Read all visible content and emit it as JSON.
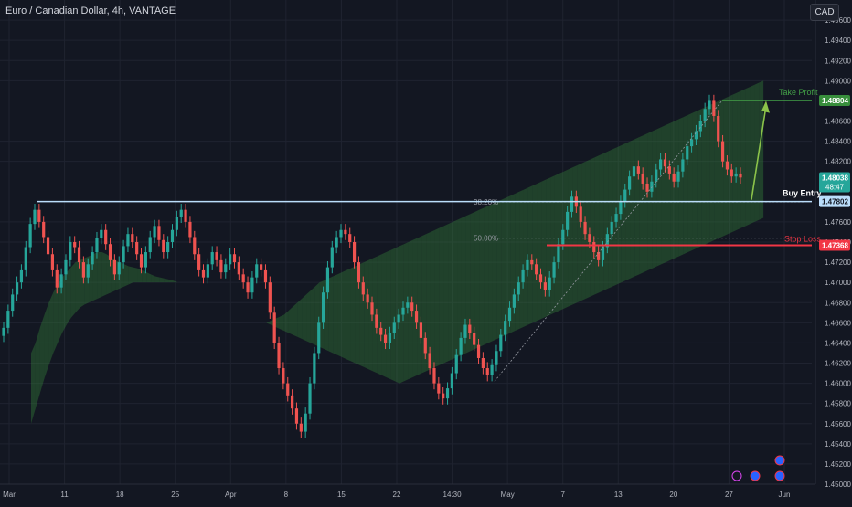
{
  "header": {
    "title": "Euro / Canadian Dollar, 4h, VANTAGE",
    "currency": "CAD"
  },
  "chart_data": {
    "type": "candlestick",
    "symbol": "EURCAD",
    "timeframe": "4h",
    "y_axis": {
      "range": [
        1.45,
        1.498
      ],
      "ticks": [
        "1.49600",
        "1.49400",
        "1.49200",
        "1.49000",
        "1.48600",
        "1.48400",
        "1.48200",
        "1.47600",
        "1.47400",
        "1.47200",
        "1.47000",
        "1.46800",
        "1.46600",
        "1.46400",
        "1.46200",
        "1.46000",
        "1.45800",
        "1.45600",
        "1.45400",
        "1.45200",
        "1.45000"
      ]
    },
    "x_axis": {
      "ticks": [
        "Mar",
        "11",
        "18",
        "25",
        "Apr",
        "8",
        "15",
        "22",
        "14:30",
        "May",
        "7",
        "13",
        "20",
        "27",
        "Jun"
      ]
    },
    "price_tags": [
      {
        "label": "1.48804",
        "price": 1.48804,
        "color": "#388e3c"
      },
      {
        "label": "1.48038",
        "sub": "48:47",
        "price": 1.48038,
        "color": "#26a69a"
      },
      {
        "label": "1.47802",
        "price": 1.47802,
        "color": "#bbdefb"
      },
      {
        "label": "1.47368",
        "price": 1.47368,
        "color": "#f23645"
      }
    ],
    "levels": {
      "buy_entry": {
        "label": "Buy Entry",
        "price": 1.47802
      },
      "take_profit": {
        "label": "Take Profit",
        "price": 1.48804
      },
      "stop_loss": {
        "label": "Stop Loss",
        "price": 1.47368
      }
    },
    "fibonacci": [
      {
        "label": "38.20%",
        "price": 1.478
      },
      {
        "label": "50.00%",
        "price": 1.4744
      }
    ],
    "candles_close": [
      1.4655,
      1.4672,
      1.4688,
      1.47,
      1.4712,
      1.4735,
      1.4758,
      1.4772,
      1.476,
      1.4745,
      1.4728,
      1.4712,
      1.4695,
      1.4708,
      1.4722,
      1.474,
      1.4735,
      1.472,
      1.4705,
      1.4718,
      1.473,
      1.4744,
      1.4752,
      1.4738,
      1.4722,
      1.4708,
      1.472,
      1.4736,
      1.4748,
      1.474,
      1.4728,
      1.4715,
      1.473,
      1.4745,
      1.4756,
      1.4742,
      1.473,
      1.474,
      1.4752,
      1.4765,
      1.4772,
      1.476,
      1.4745,
      1.4728,
      1.4712,
      1.4705,
      1.4718,
      1.473,
      1.4722,
      1.471,
      1.4718,
      1.4728,
      1.472,
      1.4708,
      1.47,
      1.469,
      1.4705,
      1.4718,
      1.4712,
      1.47,
      1.467,
      1.464,
      1.4615,
      1.46,
      1.4588,
      1.4575,
      1.456,
      1.4552,
      1.457,
      1.46,
      1.463,
      1.466,
      1.469,
      1.4715,
      1.4735,
      1.4745,
      1.4752,
      1.4748,
      1.474,
      1.472,
      1.47,
      1.4688,
      1.468,
      1.4668,
      1.4655,
      1.4648,
      1.464,
      1.465,
      1.466,
      1.4668,
      1.4675,
      1.468,
      1.4672,
      1.466,
      1.4645,
      1.463,
      1.4615,
      1.46,
      1.459,
      1.4585,
      1.4595,
      1.461,
      1.4628,
      1.4645,
      1.4658,
      1.465,
      1.4638,
      1.4625,
      1.4615,
      1.4608,
      1.4618,
      1.4632,
      1.4648,
      1.4662,
      1.4675,
      1.4688,
      1.47,
      1.4712,
      1.4722,
      1.4718,
      1.4708,
      1.47,
      1.4692,
      1.4705,
      1.472,
      1.4738,
      1.4752,
      1.477,
      1.4785,
      1.4775,
      1.476,
      1.4748,
      1.474,
      1.473,
      1.4722,
      1.4735,
      1.4748,
      1.476,
      1.4768,
      1.478,
      1.4792,
      1.4805,
      1.4815,
      1.4808,
      1.4798,
      1.479,
      1.48,
      1.4812,
      1.4822,
      1.4815,
      1.4808,
      1.48,
      1.481,
      1.4822,
      1.4835,
      1.4842,
      1.485,
      1.486,
      1.4872,
      1.488,
      1.4865,
      1.484,
      1.482,
      1.4812,
      1.4805,
      1.4808,
      1.4804
    ],
    "cloud_upper": [
      1.463,
      1.464,
      1.4655,
      1.4668,
      1.468,
      1.469,
      1.4698,
      1.4705,
      1.471,
      1.4715,
      1.472,
      1.4722,
      1.4724,
      1.4726,
      1.4728,
      1.473,
      1.473,
      1.4728,
      1.4725,
      1.4722,
      1.472,
      1.4718,
      1.4716,
      1.4715,
      1.4714,
      1.4712,
      1.471,
      1.4708,
      1.4706,
      1.4705,
      1.4704,
      1.4703,
      1.4702,
      1.47,
      1.4698,
      1.4696,
      1.4694,
      1.4692,
      1.469,
      1.4688,
      1.4686,
      1.4684,
      1.4682,
      1.468,
      1.4678,
      1.4676,
      1.4674,
      1.4672,
      1.467,
      1.4668,
      1.4666,
      1.4664,
      1.4662,
      1.466,
      1.4662,
      1.4664,
      1.4666,
      1.4668,
      1.4672,
      1.4676,
      1.468,
      1.4684,
      1.4688,
      1.4692,
      1.4696,
      1.47,
      1.4702,
      1.4704,
      1.4706,
      1.4708,
      1.471,
      1.4712,
      1.4714,
      1.4716,
      1.4718,
      1.472,
      1.4722,
      1.4724,
      1.4726,
      1.4728,
      1.473,
      1.4732,
      1.4734,
      1.4736,
      1.4738,
      1.474,
      1.4742,
      1.4744,
      1.4746,
      1.4748,
      1.475,
      1.4752,
      1.4754,
      1.4756,
      1.4758,
      1.476,
      1.4762,
      1.4764,
      1.4766,
      1.4768,
      1.477,
      1.4772,
      1.4774,
      1.4776,
      1.4778,
      1.478,
      1.4782,
      1.4784,
      1.4786,
      1.4788,
      1.479,
      1.4792,
      1.4794,
      1.4796,
      1.4798,
      1.48,
      1.4802,
      1.4804,
      1.4806,
      1.4808,
      1.481,
      1.4812,
      1.4814,
      1.4816,
      1.4818,
      1.482,
      1.4822,
      1.4824,
      1.4826,
      1.4828,
      1.483,
      1.4832,
      1.4834,
      1.4836,
      1.4838,
      1.484,
      1.4842,
      1.4844,
      1.4846,
      1.4848,
      1.485,
      1.4852,
      1.4854,
      1.4856,
      1.4858,
      1.486,
      1.4862,
      1.4864,
      1.4866,
      1.4868,
      1.487,
      1.4872,
      1.4874,
      1.4876,
      1.4878,
      1.488,
      1.4882,
      1.4884,
      1.4886,
      1.4888,
      1.489,
      1.4892,
      1.4894,
      1.4896,
      1.4898,
      1.49,
      1.4902,
      1.4904
    ],
    "cloud_lower": [
      1.456,
      1.4575,
      1.459,
      1.4605,
      1.4618,
      1.463,
      1.464,
      1.465,
      1.4658,
      1.4665,
      1.467,
      1.4675,
      1.4678,
      1.468,
      1.4682,
      1.4684,
      1.4686,
      1.4688,
      1.469,
      1.4692,
      1.4694,
      1.4696,
      1.4698,
      1.47,
      1.47,
      1.47,
      1.47,
      1.47,
      1.47,
      1.47,
      1.47,
      1.47,
      1.47,
      1.47,
      1.4698,
      1.4696,
      1.4694,
      1.4692,
      1.469,
      1.4688,
      1.4686,
      1.4684,
      1.4682,
      1.468,
      1.4678,
      1.4676,
      1.4674,
      1.4672,
      1.467,
      1.4668,
      1.4666,
      1.4664,
      1.4662,
      1.466,
      1.4658,
      1.4656,
      1.4654,
      1.4652,
      1.465,
      1.4648,
      1.4646,
      1.4644,
      1.4642,
      1.464,
      1.4638,
      1.4636,
      1.4634,
      1.4632,
      1.463,
      1.4628,
      1.4626,
      1.4624,
      1.4622,
      1.462,
      1.4618,
      1.4616,
      1.4614,
      1.4612,
      1.461,
      1.4608,
      1.4606,
      1.4604,
      1.4602,
      1.46,
      1.4602,
      1.4604,
      1.4606,
      1.4608,
      1.461,
      1.4612,
      1.4614,
      1.4616,
      1.4618,
      1.462,
      1.4622,
      1.4624,
      1.4626,
      1.4628,
      1.463,
      1.4632,
      1.4634,
      1.4636,
      1.4638,
      1.464,
      1.4642,
      1.4644,
      1.4646,
      1.4648,
      1.465,
      1.4652,
      1.4654,
      1.4656,
      1.4658,
      1.466,
      1.4662,
      1.4664,
      1.4666,
      1.4668,
      1.467,
      1.4672,
      1.4674,
      1.4676,
      1.4678,
      1.468,
      1.4682,
      1.4684,
      1.4686,
      1.4688,
      1.469,
      1.4692,
      1.4694,
      1.4696,
      1.4698,
      1.47,
      1.4702,
      1.4704,
      1.4706,
      1.4708,
      1.471,
      1.4712,
      1.4714,
      1.4716,
      1.4718,
      1.472,
      1.4722,
      1.4724,
      1.4726,
      1.4728,
      1.473,
      1.4732,
      1.4734,
      1.4736,
      1.4738,
      1.474,
      1.4742,
      1.4744,
      1.4746,
      1.4748,
      1.475,
      1.4752,
      1.4754,
      1.4756,
      1.4758,
      1.476,
      1.4762,
      1.4764
    ]
  }
}
